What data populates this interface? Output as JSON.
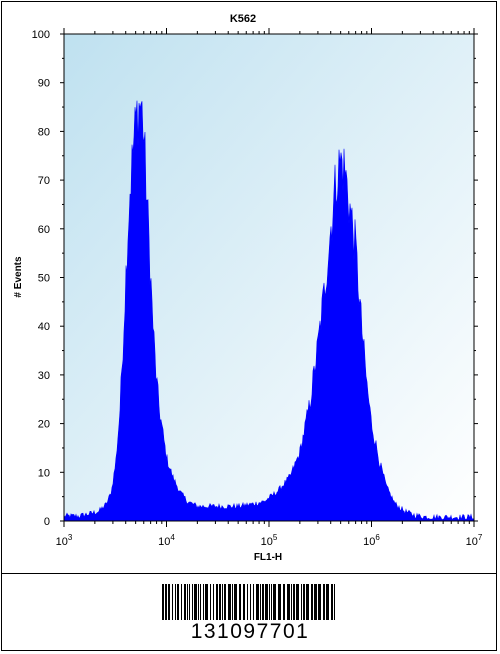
{
  "chart_data": {
    "type": "area",
    "title": "K562",
    "xlabel": "FL1-H",
    "ylabel": "# Events",
    "x_scale": "log",
    "xlim": [
      1000,
      10000000
    ],
    "ylim": [
      0,
      100
    ],
    "x_ticks": [
      {
        "value": 1000,
        "base": "10",
        "exp": "3"
      },
      {
        "value": 10000,
        "base": "10",
        "exp": "4"
      },
      {
        "value": 100000,
        "base": "10",
        "exp": "5"
      },
      {
        "value": 1000000,
        "base": "10",
        "exp": "6"
      },
      {
        "value": 10000000,
        "base": "10",
        "exp": "7"
      }
    ],
    "y_ticks": [
      "0",
      "10",
      "20",
      "30",
      "40",
      "50",
      "60",
      "70",
      "80",
      "90",
      "100"
    ],
    "grid": false,
    "series": [
      {
        "color": "#0000ff",
        "points": [
          [
            1000,
            1
          ],
          [
            1400,
            1
          ],
          [
            1800,
            1.5
          ],
          [
            2200,
            2
          ],
          [
            2600,
            3.5
          ],
          [
            2900,
            6
          ],
          [
            3200,
            12
          ],
          [
            3500,
            22
          ],
          [
            3800,
            38
          ],
          [
            4100,
            55
          ],
          [
            4400,
            68
          ],
          [
            4800,
            78
          ],
          [
            5200,
            84
          ],
          [
            5600,
            86
          ],
          [
            5900,
            82
          ],
          [
            6300,
            70
          ],
          [
            6800,
            56
          ],
          [
            7300,
            42
          ],
          [
            7900,
            30
          ],
          [
            8500,
            23
          ],
          [
            9200,
            18
          ],
          [
            10000,
            13
          ],
          [
            11500,
            9
          ],
          [
            13500,
            6
          ],
          [
            16000,
            4
          ],
          [
            20000,
            3
          ],
          [
            30000,
            3
          ],
          [
            50000,
            3
          ],
          [
            70000,
            3.5
          ],
          [
            90000,
            4
          ],
          [
            120000,
            6
          ],
          [
            160000,
            9
          ],
          [
            200000,
            14
          ],
          [
            250000,
            24
          ],
          [
            300000,
            36
          ],
          [
            350000,
            48
          ],
          [
            400000,
            60
          ],
          [
            450000,
            70
          ],
          [
            500000,
            74
          ],
          [
            550000,
            72
          ],
          [
            600000,
            66
          ],
          [
            700000,
            56
          ],
          [
            800000,
            40
          ],
          [
            900000,
            28
          ],
          [
            1000000,
            20
          ],
          [
            1200000,
            12
          ],
          [
            1400000,
            7
          ],
          [
            1700000,
            3.5
          ],
          [
            2100000,
            2
          ],
          [
            2600000,
            1.2
          ],
          [
            3500000,
            0.8
          ],
          [
            6000000,
            0.8
          ],
          [
            10000000,
            0.8
          ]
        ]
      }
    ]
  },
  "barcode": {
    "number": "131097701"
  }
}
